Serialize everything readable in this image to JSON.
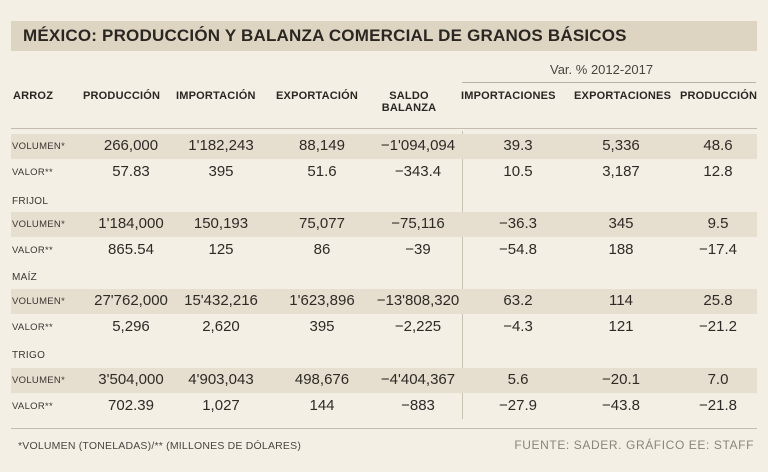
{
  "title": "MÉXICO: PRODUCCIÓN Y BALANZA COMERCIAL DE GRANOS BÁSICOS",
  "var_label": "Var. % 2012-2017",
  "headers": {
    "c0": "ARROZ",
    "c1": "PRODUCCIÓN",
    "c2": "IMPORTACIÓN",
    "c3": "EXPORTACIÓN",
    "c4_line1": "SALDO",
    "c4_line2": "BALANZA",
    "c5": "IMPORTACIONES",
    "c6": "EXPORTACIONES",
    "c7": "PRODUCCIÓN"
  },
  "sections": [
    {
      "name": "ARROZ",
      "rows": [
        {
          "label": "VOLUMEN*",
          "values": [
            "266,000",
            "1'182,243",
            "88,149",
            "−1'094,094",
            "39.3",
            "5,336",
            "48.6"
          ]
        },
        {
          "label": "VALOR**",
          "values": [
            "57.83",
            "395",
            "51.6",
            "−343.4",
            "10.5",
            "3,187",
            "12.8"
          ]
        }
      ]
    },
    {
      "name": "FRIJOL",
      "rows": [
        {
          "label": "VOLUMEN*",
          "values": [
            "1'184,000",
            "150,193",
            "75,077",
            "−75,116",
            "−36.3",
            "345",
            "9.5"
          ]
        },
        {
          "label": "VALOR**",
          "values": [
            "865.54",
            "125",
            "86",
            "−39",
            "−54.8",
            "188",
            "−17.4"
          ]
        }
      ]
    },
    {
      "name": "MAÍZ",
      "rows": [
        {
          "label": "VOLUMEN*",
          "values": [
            "27'762,000",
            "15'432,216",
            "1'623,896",
            "−13'808,320",
            "63.2",
            "114",
            "25.8"
          ]
        },
        {
          "label": "VALOR**",
          "values": [
            "5,296",
            "2,620",
            "395",
            "−2,225",
            "−4.3",
            "121",
            "−21.2"
          ]
        }
      ]
    },
    {
      "name": "TRIGO",
      "rows": [
        {
          "label": "VOLUMEN*",
          "values": [
            "3'504,000",
            "4'903,043",
            "498,676",
            "−4'404,367",
            "5.6",
            "−20.1",
            "7.0"
          ]
        },
        {
          "label": "VALOR**",
          "values": [
            "702.39",
            "1,027",
            "144",
            "−883",
            "−27.9",
            "−43.8",
            "−21.8"
          ]
        }
      ]
    }
  ],
  "footnote": "*VOLUMEN (TONELADAS)/** (MILLONES DE DÓLARES)",
  "source": "FUENTE: SADER. GRÁFICO EE: STAFF"
}
